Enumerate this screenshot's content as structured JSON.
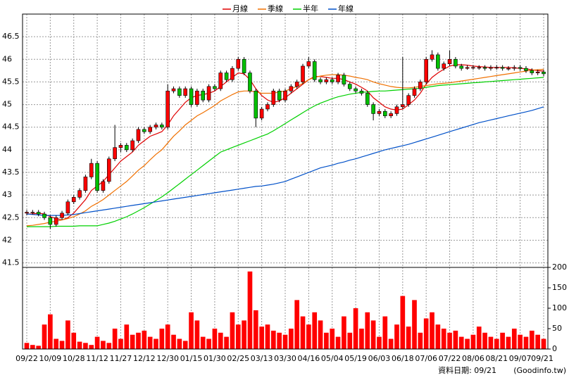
{
  "chart_data": {
    "type": "candlestick",
    "categories": [
      "09/22",
      null,
      null,
      null,
      "10/09",
      null,
      null,
      null,
      "10/28",
      null,
      null,
      null,
      "11/12",
      null,
      null,
      null,
      "11/27",
      null,
      null,
      null,
      "12/12",
      null,
      null,
      null,
      "12/30",
      null,
      null,
      null,
      "01/15",
      null,
      null,
      null,
      "01/30",
      null,
      null,
      null,
      "02/25",
      null,
      null,
      null,
      "03/13",
      null,
      null,
      null,
      "03/30",
      null,
      null,
      null,
      "04/16",
      null,
      null,
      null,
      "05/04",
      null,
      null,
      null,
      "05/19",
      null,
      null,
      null,
      "06/03",
      null,
      null,
      null,
      "06/18",
      null,
      null,
      null,
      "07/06",
      null,
      null,
      null,
      "07/22",
      null,
      null,
      null,
      "08/06",
      null,
      null,
      null,
      "08/21",
      null,
      null,
      null,
      "09/07",
      null,
      null,
      null,
      "09/21"
    ],
    "open": [
      42.6,
      42.62,
      42.62,
      42.58,
      42.5,
      42.35,
      42.5,
      42.6,
      42.85,
      42.95,
      43.1,
      43.4,
      43.7,
      43.1,
      43.3,
      43.8,
      44.05,
      44.1,
      44.0,
      44.2,
      44.45,
      44.4,
      44.5,
      44.55,
      44.5,
      45.3,
      45.35,
      45.2,
      45.35,
      45.0,
      45.3,
      45.1,
      45.4,
      45.35,
      45.7,
      45.55,
      45.8,
      46.0,
      45.7,
      45.3,
      44.7,
      44.9,
      45.0,
      45.3,
      45.1,
      45.3,
      45.4,
      45.5,
      45.85,
      45.95,
      45.55,
      45.5,
      45.55,
      45.5,
      45.65,
      45.45,
      45.35,
      45.3,
      45.25,
      45.0,
      44.8,
      44.85,
      44.75,
      44.8,
      44.95,
      45.0,
      45.2,
      45.35,
      45.5,
      46.0,
      46.1,
      45.8,
      45.9,
      46.0,
      45.85,
      45.8,
      45.82,
      45.82,
      45.82,
      45.8,
      45.82,
      45.82,
      45.8,
      45.8,
      45.82,
      45.8,
      45.75,
      45.7,
      45.72
    ],
    "high": [
      42.67,
      42.67,
      42.67,
      42.63,
      42.55,
      42.55,
      42.65,
      42.9,
      43.0,
      43.15,
      43.45,
      43.8,
      43.75,
      43.35,
      43.85,
      44.55,
      44.15,
      44.15,
      44.25,
      44.5,
      44.5,
      44.55,
      44.6,
      44.6,
      45.45,
      45.4,
      45.4,
      45.4,
      45.4,
      45.35,
      45.35,
      45.45,
      45.45,
      45.75,
      45.75,
      45.85,
      46.05,
      46.05,
      45.75,
      45.35,
      44.95,
      45.05,
      45.35,
      45.35,
      45.35,
      45.45,
      45.55,
      45.9,
      46.05,
      46.0,
      45.6,
      45.6,
      45.6,
      45.7,
      45.7,
      45.5,
      45.4,
      45.35,
      45.3,
      45.05,
      44.9,
      44.9,
      44.85,
      45.0,
      46.05,
      45.25,
      45.4,
      45.55,
      46.05,
      46.2,
      46.15,
      45.95,
      46.2,
      46.05,
      45.9,
      45.87,
      45.87,
      45.87,
      45.87,
      45.87,
      45.87,
      45.87,
      45.85,
      45.87,
      45.87,
      45.85,
      45.8,
      45.77,
      45.77
    ],
    "low": [
      42.55,
      42.57,
      42.53,
      42.45,
      42.25,
      42.3,
      42.45,
      42.55,
      42.8,
      42.9,
      43.05,
      43.35,
      43.05,
      43.05,
      43.25,
      43.75,
      43.95,
      43.95,
      43.95,
      44.15,
      44.35,
      44.35,
      44.45,
      44.45,
      44.45,
      45.25,
      45.15,
      45.15,
      44.95,
      44.95,
      45.05,
      45.05,
      45.3,
      45.3,
      45.5,
      45.5,
      45.75,
      45.65,
      45.25,
      44.5,
      44.65,
      44.85,
      44.95,
      45.05,
      45.05,
      45.25,
      45.35,
      45.45,
      45.8,
      45.5,
      45.45,
      45.45,
      45.45,
      45.45,
      45.4,
      45.3,
      45.25,
      45.2,
      44.95,
      44.65,
      44.75,
      44.7,
      44.7,
      44.75,
      44.9,
      44.95,
      45.15,
      45.3,
      45.45,
      45.95,
      45.75,
      45.75,
      45.85,
      45.8,
      45.75,
      45.77,
      45.77,
      45.77,
      45.75,
      45.75,
      45.77,
      45.75,
      45.75,
      45.75,
      45.75,
      45.7,
      45.65,
      45.65,
      45.63
    ],
    "close": [
      42.62,
      42.62,
      42.58,
      42.5,
      42.35,
      42.5,
      42.6,
      42.85,
      42.95,
      43.1,
      43.4,
      43.7,
      43.1,
      43.3,
      43.8,
      44.05,
      44.1,
      44.0,
      44.2,
      44.45,
      44.4,
      44.5,
      44.55,
      44.5,
      45.3,
      45.35,
      45.2,
      45.35,
      45.0,
      45.3,
      45.1,
      45.4,
      45.35,
      45.7,
      45.55,
      45.8,
      46.0,
      45.7,
      45.3,
      44.7,
      44.9,
      45.0,
      45.3,
      45.1,
      45.3,
      45.4,
      45.5,
      45.85,
      45.95,
      45.55,
      45.5,
      45.55,
      45.5,
      45.65,
      45.45,
      45.35,
      45.3,
      45.25,
      45.0,
      44.8,
      44.85,
      44.75,
      44.8,
      44.95,
      45.0,
      45.2,
      45.35,
      45.5,
      46.0,
      46.1,
      45.8,
      45.9,
      46.0,
      45.85,
      45.8,
      45.82,
      45.82,
      45.82,
      45.8,
      45.82,
      45.82,
      45.8,
      45.8,
      45.82,
      45.8,
      45.75,
      45.7,
      45.72,
      45.68
    ],
    "up_color": "#ff0000",
    "down_color": "#00c000",
    "series": [
      {
        "name": "月線",
        "color": "#e00000",
        "values": [
          42.58,
          42.58,
          42.6,
          42.58,
          42.52,
          42.48,
          42.45,
          42.5,
          42.6,
          42.75,
          42.9,
          43.1,
          43.2,
          43.3,
          43.45,
          43.6,
          43.75,
          43.85,
          43.95,
          44.1,
          44.2,
          44.3,
          44.35,
          44.4,
          44.55,
          44.75,
          44.9,
          45.05,
          45.15,
          45.2,
          45.22,
          45.25,
          45.3,
          45.4,
          45.5,
          45.6,
          45.7,
          45.68,
          45.55,
          45.35,
          45.2,
          45.1,
          45.05,
          45.08,
          45.15,
          45.25,
          45.35,
          45.45,
          45.55,
          45.62,
          45.62,
          45.6,
          45.58,
          45.58,
          45.55,
          45.5,
          45.45,
          45.38,
          45.3,
          45.15,
          45.05,
          44.95,
          44.9,
          44.88,
          44.9,
          45.0,
          45.1,
          45.25,
          45.45,
          45.6,
          45.7,
          45.78,
          45.85,
          45.88,
          45.88,
          45.87,
          45.85,
          45.84,
          45.83,
          45.82,
          45.82,
          45.82,
          45.82,
          45.81,
          45.8,
          45.79,
          45.77,
          45.75,
          45.74
        ]
      },
      {
        "name": "季線",
        "color": "#f07000",
        "values": [
          42.32,
          42.33,
          42.35,
          42.37,
          42.4,
          42.42,
          42.45,
          42.48,
          42.52,
          42.58,
          42.65,
          42.75,
          42.82,
          42.9,
          43.0,
          43.1,
          43.2,
          43.3,
          43.42,
          43.55,
          43.65,
          43.78,
          43.9,
          44.0,
          44.15,
          44.3,
          44.42,
          44.55,
          44.65,
          44.75,
          44.82,
          44.9,
          44.98,
          45.08,
          45.15,
          45.22,
          45.28,
          45.3,
          45.3,
          45.28,
          45.25,
          45.25,
          45.25,
          45.28,
          45.3,
          45.35,
          45.4,
          45.47,
          45.55,
          45.6,
          45.63,
          45.65,
          45.66,
          45.66,
          45.65,
          45.63,
          45.6,
          45.58,
          45.55,
          45.5,
          45.46,
          45.43,
          45.4,
          45.38,
          45.37,
          45.37,
          45.38,
          45.4,
          45.42,
          45.44,
          45.46,
          45.47,
          45.48,
          45.5,
          45.52,
          45.54,
          45.56,
          45.58,
          45.6,
          45.62,
          45.64,
          45.66,
          45.68,
          45.7,
          45.72,
          45.74,
          45.76,
          45.77,
          45.78
        ]
      },
      {
        "name": "半年",
        "color": "#00d000",
        "values": [
          42.3,
          42.3,
          42.3,
          42.3,
          42.3,
          42.31,
          42.31,
          42.31,
          42.31,
          42.32,
          42.32,
          42.32,
          42.32,
          42.35,
          42.38,
          42.42,
          42.47,
          42.52,
          42.58,
          42.65,
          42.72,
          42.8,
          42.88,
          42.96,
          43.05,
          43.15,
          43.25,
          43.35,
          43.45,
          43.55,
          43.65,
          43.75,
          43.85,
          43.95,
          44.0,
          44.05,
          44.1,
          44.15,
          44.2,
          44.25,
          44.3,
          44.35,
          44.42,
          44.5,
          44.58,
          44.66,
          44.74,
          44.82,
          44.9,
          44.97,
          45.03,
          45.08,
          45.13,
          45.17,
          45.2,
          45.23,
          45.25,
          45.27,
          45.28,
          45.29,
          45.3,
          45.3,
          45.31,
          45.32,
          45.33,
          45.34,
          45.35,
          45.36,
          45.38,
          45.4,
          45.42,
          45.43,
          45.44,
          45.45,
          45.46,
          45.47,
          45.48,
          45.49,
          45.5,
          45.51,
          45.52,
          45.53,
          45.54,
          45.55,
          45.56,
          45.57,
          45.58,
          45.59,
          45.6
        ]
      },
      {
        "name": "年線",
        "color": "#0050c8",
        "values": [
          42.58,
          42.57,
          42.56,
          42.55,
          42.55,
          42.55,
          42.55,
          42.56,
          42.57,
          42.59,
          42.61,
          42.63,
          42.65,
          42.67,
          42.69,
          42.71,
          42.73,
          42.75,
          42.77,
          42.79,
          42.81,
          42.83,
          42.85,
          42.87,
          42.89,
          42.91,
          42.93,
          42.95,
          42.97,
          42.99,
          43.01,
          43.03,
          43.05,
          43.07,
          43.09,
          43.11,
          43.13,
          43.15,
          43.17,
          43.19,
          43.2,
          43.22,
          43.24,
          43.27,
          43.3,
          43.35,
          43.4,
          43.45,
          43.5,
          43.55,
          43.6,
          43.63,
          43.66,
          43.7,
          43.73,
          43.77,
          43.8,
          43.84,
          43.88,
          43.92,
          43.96,
          44.0,
          44.03,
          44.06,
          44.09,
          44.12,
          44.16,
          44.2,
          44.24,
          44.28,
          44.32,
          44.36,
          44.4,
          44.44,
          44.48,
          44.52,
          44.56,
          44.6,
          44.63,
          44.66,
          44.69,
          44.72,
          44.75,
          44.78,
          44.81,
          44.84,
          44.87,
          44.91,
          44.95
        ]
      }
    ],
    "ylim": [
      41.4,
      47.0
    ],
    "yticks": [
      41.5,
      42,
      42.5,
      43,
      43.5,
      44,
      44.5,
      45,
      45.5,
      46,
      46.5
    ],
    "grid": true,
    "volume": {
      "color": "#ff0000",
      "values": [
        15,
        10,
        8,
        60,
        85,
        25,
        20,
        70,
        40,
        18,
        15,
        10,
        30,
        20,
        15,
        50,
        25,
        60,
        35,
        40,
        45,
        30,
        25,
        50,
        60,
        35,
        25,
        20,
        90,
        70,
        30,
        25,
        50,
        40,
        30,
        90,
        60,
        70,
        190,
        95,
        55,
        60,
        45,
        40,
        35,
        50,
        120,
        80,
        60,
        90,
        70,
        40,
        50,
        30,
        80,
        40,
        100,
        50,
        90,
        70,
        30,
        80,
        25,
        60,
        130,
        55,
        120,
        40,
        75,
        90,
        60,
        50,
        40,
        45,
        30,
        25,
        35,
        55,
        40,
        30,
        25,
        40,
        30,
        50,
        35,
        30,
        45,
        35,
        25
      ],
      "ylim": [
        0,
        200
      ],
      "yticks": [
        0,
        50,
        100,
        150,
        200
      ]
    },
    "date_note": "資料日期: 09/21",
    "source": "(Goodinfo.tw)"
  }
}
